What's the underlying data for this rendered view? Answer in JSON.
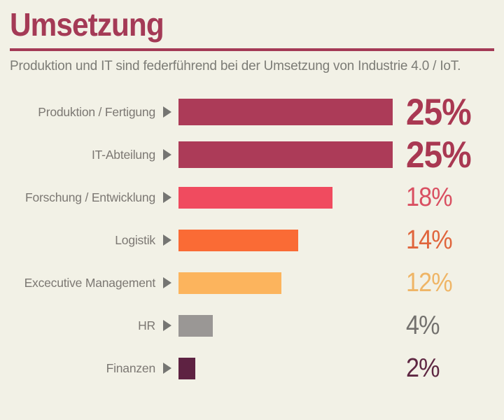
{
  "header": {
    "title": "Umsetzung",
    "subtitle": "Produktion und IT sind federführend bei der Umsetzung von Industrie 4.0 / IoT."
  },
  "colors": {
    "background": "#F2F1E6",
    "title": "#A43A56",
    "title_rule": "#A43A56",
    "subtitle": "#7C7C76",
    "row_label": "#7C7873",
    "row_marker": "#757572"
  },
  "icons": {
    "row_marker": "play-triangle-right"
  },
  "chart_data": {
    "type": "bar",
    "orientation": "horizontal",
    "title": "Umsetzung",
    "subtitle": "Produktion und IT sind federführend bei der Umsetzung von Industrie 4.0 / IoT.",
    "unit": "%",
    "value_scale_max": 25,
    "grid": false,
    "legend": false,
    "categories": [
      "Produktion / Fertigung",
      "IT-Abteilung",
      "Forschung / Entwicklung",
      "Logistik",
      "Excecutive Management",
      "HR",
      "Finanzen"
    ],
    "values": [
      25,
      25,
      18,
      14,
      12,
      4,
      2
    ],
    "bars": [
      {
        "label": "Produktion / Fertigung",
        "value": 25,
        "value_label": "25%",
        "bar_color": "#AC3B58",
        "value_color": "#A93852",
        "emphasis": true
      },
      {
        "label": "IT-Abteilung",
        "value": 25,
        "value_label": "25%",
        "bar_color": "#AC3B58",
        "value_color": "#A93852",
        "emphasis": true
      },
      {
        "label": "Forschung / Entwicklung",
        "value": 18,
        "value_label": "18%",
        "bar_color": "#F04B5F",
        "value_color": "#D94F61",
        "emphasis": false
      },
      {
        "label": "Logistik",
        "value": 14,
        "value_label": "14%",
        "bar_color": "#FA6B35",
        "value_color": "#E0653C",
        "emphasis": false
      },
      {
        "label": "Excecutive Management",
        "value": 12,
        "value_label": "12%",
        "bar_color": "#FCB45D",
        "value_color": "#EFB566",
        "emphasis": false
      },
      {
        "label": "HR",
        "value": 4,
        "value_label": "4%",
        "bar_color": "#9A9795",
        "value_color": "#73716E",
        "emphasis": false
      },
      {
        "label": "Finanzen",
        "value": 2,
        "value_label": "2%",
        "bar_color": "#5E2242",
        "value_color": "#5E2742",
        "emphasis": false
      }
    ]
  }
}
